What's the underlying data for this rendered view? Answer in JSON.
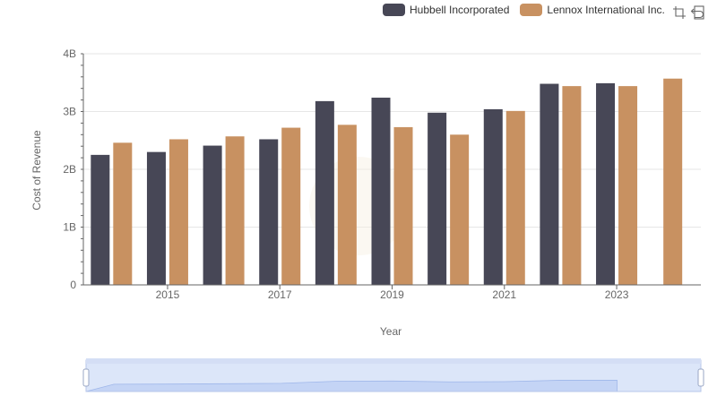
{
  "chart_data": {
    "type": "bar",
    "title": "",
    "xlabel": "Year",
    "ylabel": "Cost of Revenue",
    "x": [
      2014,
      2015,
      2016,
      2017,
      2018,
      2019,
      2020,
      2021,
      2022,
      2023,
      2024
    ],
    "x_tick_labels": [
      "2015",
      "2017",
      "2019",
      "2021",
      "2023"
    ],
    "y_tick_labels": [
      "0",
      "1B",
      "2B",
      "3B",
      "4B"
    ],
    "ylim": [
      0,
      4000000000
    ],
    "grid": true,
    "legend_position": "top-right",
    "series": [
      {
        "name": "Hubbell Incorporated",
        "color": "#474756",
        "values": [
          2250000000,
          2300000000,
          2410000000,
          2520000000,
          3180000000,
          3240000000,
          2980000000,
          3040000000,
          3480000000,
          3490000000,
          null
        ]
      },
      {
        "name": "Lennox International Inc.",
        "color": "#c89161",
        "values": [
          2460000000,
          2520000000,
          2570000000,
          2720000000,
          2770000000,
          2730000000,
          2600000000,
          3010000000,
          3440000000,
          3440000000,
          3570000000
        ]
      }
    ]
  },
  "toolbox": {
    "icons": [
      "zoom-icon",
      "restore-icon"
    ]
  },
  "datazoom": {
    "start": 0,
    "end": 100
  }
}
